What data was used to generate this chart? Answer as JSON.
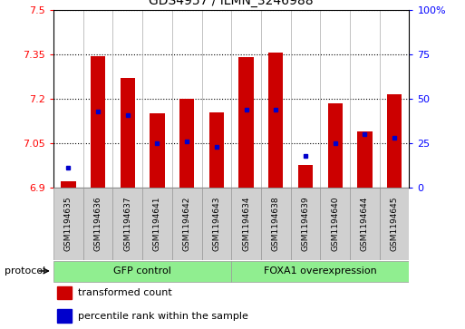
{
  "title": "GDS4957 / ILMN_3246988",
  "samples": [
    "GSM1194635",
    "GSM1194636",
    "GSM1194637",
    "GSM1194641",
    "GSM1194642",
    "GSM1194643",
    "GSM1194634",
    "GSM1194638",
    "GSM1194639",
    "GSM1194640",
    "GSM1194644",
    "GSM1194645"
  ],
  "transformed_count": [
    6.92,
    7.345,
    7.27,
    7.15,
    7.2,
    7.155,
    7.34,
    7.355,
    6.975,
    7.185,
    7.09,
    7.215
  ],
  "percentile_rank": [
    11,
    43,
    41,
    25,
    26,
    23,
    44,
    44,
    18,
    25,
    30,
    28
  ],
  "ylim_left": [
    6.9,
    7.5
  ],
  "ylim_right": [
    0,
    100
  ],
  "yticks_left": [
    6.9,
    7.05,
    7.2,
    7.35,
    7.5
  ],
  "yticks_right": [
    0,
    25,
    50,
    75,
    100
  ],
  "bar_color": "#cc0000",
  "dot_color": "#0000cc",
  "group_defs": [
    {
      "label": "GFP control",
      "start": 0,
      "end": 6
    },
    {
      "label": "FOXA1 overexpression",
      "start": 6,
      "end": 12
    }
  ],
  "group_color": "#90ee90",
  "protocol_label": "protocol",
  "legend_items": [
    {
      "label": "transformed count",
      "color": "#cc0000"
    },
    {
      "label": "percentile rank within the sample",
      "color": "#0000cc"
    }
  ],
  "title_fontsize": 10,
  "bar_width": 0.5,
  "base_value": 6.9,
  "xtick_bg_color": "#d0d0d0",
  "xtick_edge_color": "#999999"
}
